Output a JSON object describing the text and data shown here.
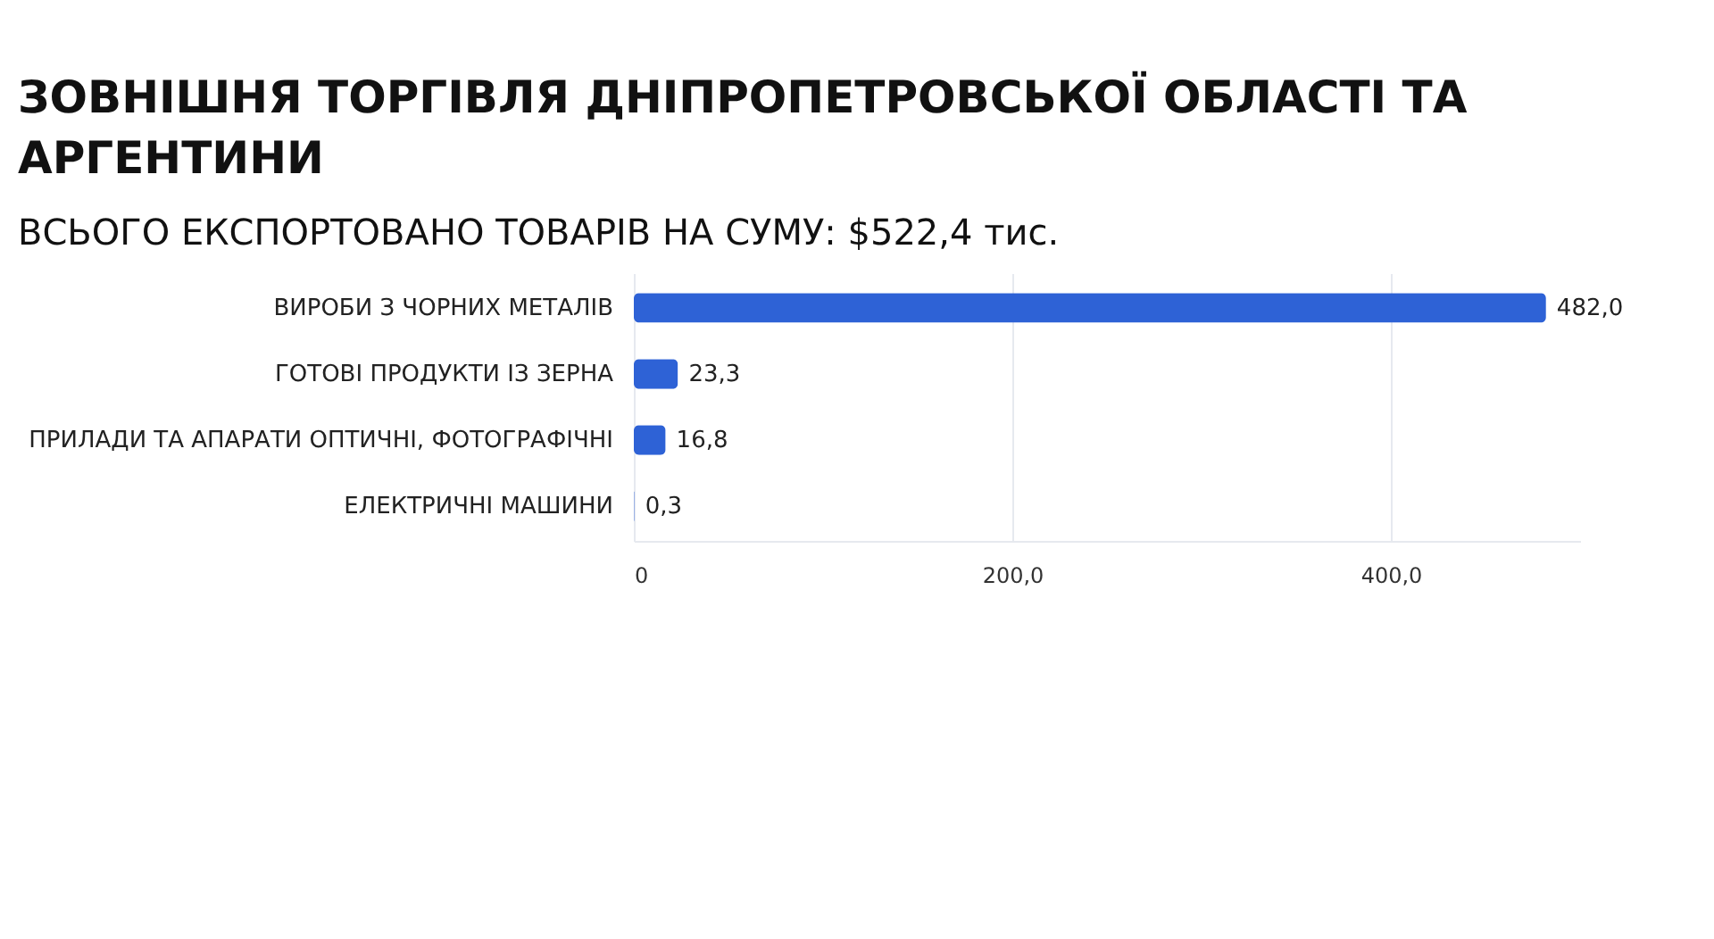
{
  "chart_data": {
    "type": "bar",
    "orientation": "horizontal",
    "title": "ЗОВНІШНЯ ТОРГІВЛЯ ДНІПРОПЕТРОВСЬКОЇ ОБЛАСТІ ТА АРГЕНТИНИ",
    "subtitle": "ВСЬОГО ЕКСПОРТОВАНО ТОВАРІВ НА СУМУ: $522,4 тис.",
    "categories": [
      "ВИРОБИ З ЧОРНИХ МЕТАЛІВ",
      "ГОТОВІ ПРОДУКТИ ІЗ ЗЕРНА",
      "ПРИЛАДИ ТА АПАРАТИ ОПТИЧНІ, ФОТОГРАФІЧНІ",
      "ЕЛЕКТРИЧНІ МАШИНИ"
    ],
    "values": [
      482.0,
      23.3,
      16.8,
      0.3
    ],
    "value_labels": [
      "482,0",
      "23,3",
      "16,8",
      "0,3"
    ],
    "color": "#2e62d6",
    "xticks": [
      0,
      {
        "value": 200,
        "label": "200,0"
      },
      {
        "value": 400,
        "label": "400,0"
      }
    ],
    "xlim": [
      0,
      500
    ],
    "grid": "x"
  }
}
